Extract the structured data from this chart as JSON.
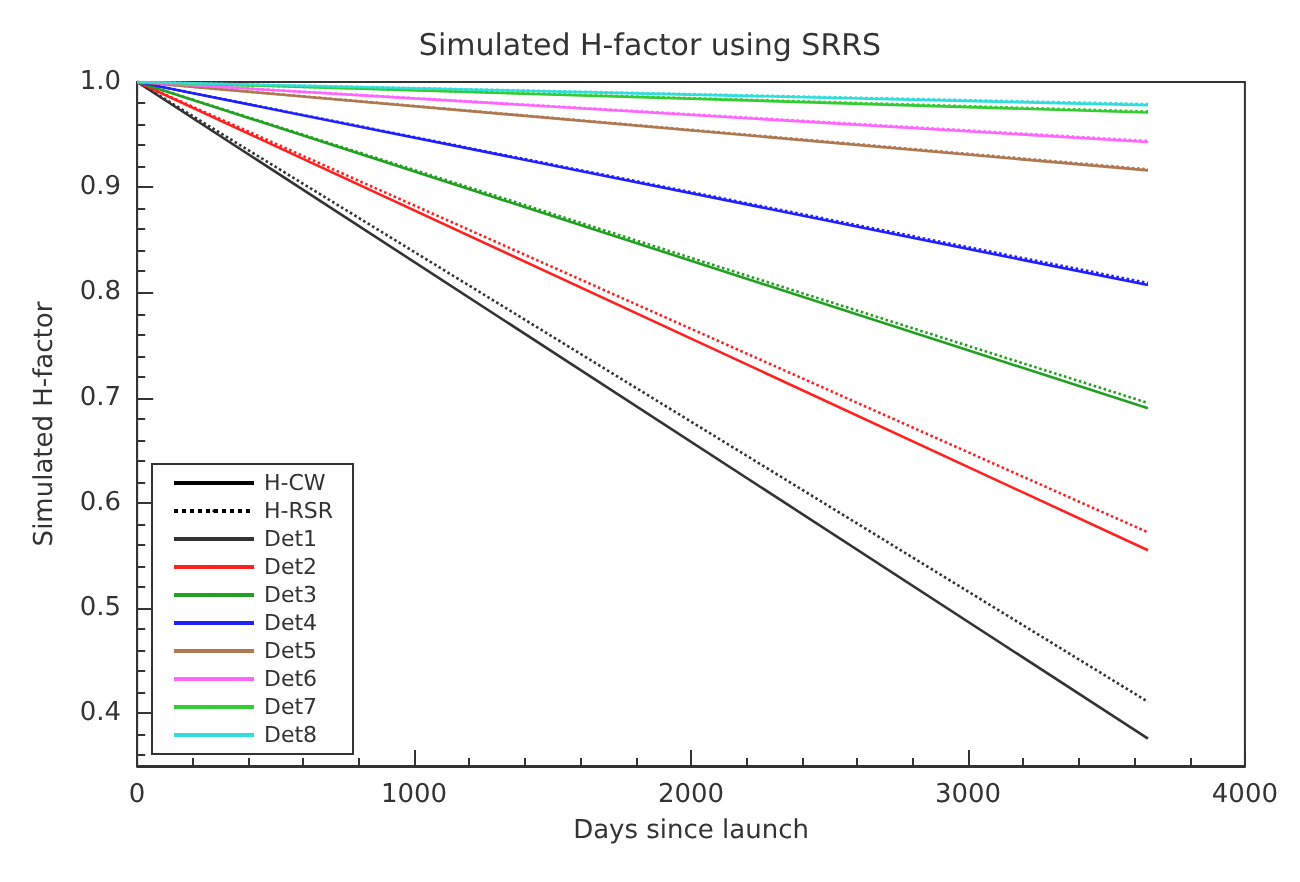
{
  "chart_data": {
    "type": "line",
    "title": "Simulated H-factor using SRRS",
    "xlabel": "Days since launch",
    "ylabel": "Simulated H-factor",
    "xlim": [
      0,
      4000
    ],
    "xticks": [
      0,
      1000,
      2000,
      3000,
      4000
    ],
    "ylim": [
      0.35,
      1.0
    ],
    "yticks": [
      {
        "value": 0.4,
        "label": "0.4"
      },
      {
        "value": 0.5,
        "label": "0.5"
      },
      {
        "value": 0.6,
        "label": "0.6"
      },
      {
        "value": 0.7,
        "label": "0.7"
      },
      {
        "value": 0.8,
        "label": "0.8"
      },
      {
        "value": 0.9,
        "label": "0.9"
      },
      {
        "value": 1.0,
        "label": "1.0"
      }
    ],
    "grid": false,
    "legend": "bottom left",
    "marker": "none",
    "x": [
      0,
      3650
    ],
    "series": [
      {
        "name": "H-CW",
        "color": "#000000",
        "line_style": "solid",
        "values": [
          null,
          null
        ]
      },
      {
        "name": "H-RSR",
        "color": "#000000",
        "line_style": "dotted",
        "values": [
          null,
          null
        ]
      },
      {
        "name": "Det1",
        "color": "#333333",
        "line_style": "solid",
        "values": [
          1.0,
          0.376
        ]
      },
      {
        "name": "Det2",
        "color": "#ff2020",
        "line_style": "solid",
        "values": [
          1.0,
          0.555
        ]
      },
      {
        "name": "Det3",
        "color": "#22a022",
        "line_style": "solid",
        "values": [
          1.0,
          0.69
        ]
      },
      {
        "name": "Det4",
        "color": "#2020ff",
        "line_style": "solid",
        "values": [
          1.0,
          0.807
        ]
      },
      {
        "name": "Det5",
        "color": "#b07850",
        "line_style": "solid",
        "values": [
          1.0,
          0.916
        ]
      },
      {
        "name": "Det6",
        "color": "#ff66ff",
        "line_style": "solid",
        "values": [
          1.0,
          0.943
        ]
      },
      {
        "name": "Det7",
        "color": "#33cc33",
        "line_style": "solid",
        "values": [
          1.0,
          0.971
        ]
      },
      {
        "name": "Det8",
        "color": "#33dddd",
        "line_style": "solid",
        "values": [
          1.0,
          0.978
        ]
      },
      {
        "color": "#333333",
        "line_style": "dotted",
        "values": [
          1.0,
          0.411
        ]
      },
      {
        "color": "#ff2020",
        "line_style": "dotted",
        "values": [
          1.0,
          0.572
        ]
      },
      {
        "color": "#22a022",
        "line_style": "dotted",
        "values": [
          1.0,
          0.695
        ]
      },
      {
        "color": "#2020ff",
        "line_style": "dotted",
        "values": [
          1.0,
          0.809
        ]
      },
      {
        "color": "#b07850",
        "line_style": "dotted",
        "values": [
          1.0,
          0.917
        ]
      },
      {
        "color": "#ff66ff",
        "line_style": "dotted",
        "values": [
          1.0,
          0.944
        ]
      },
      {
        "color": "#33cc33",
        "line_style": "dotted",
        "values": [
          1.0,
          0.972
        ]
      },
      {
        "color": "#33dddd",
        "line_style": "dotted",
        "values": [
          1.0,
          0.979
        ]
      }
    ]
  }
}
